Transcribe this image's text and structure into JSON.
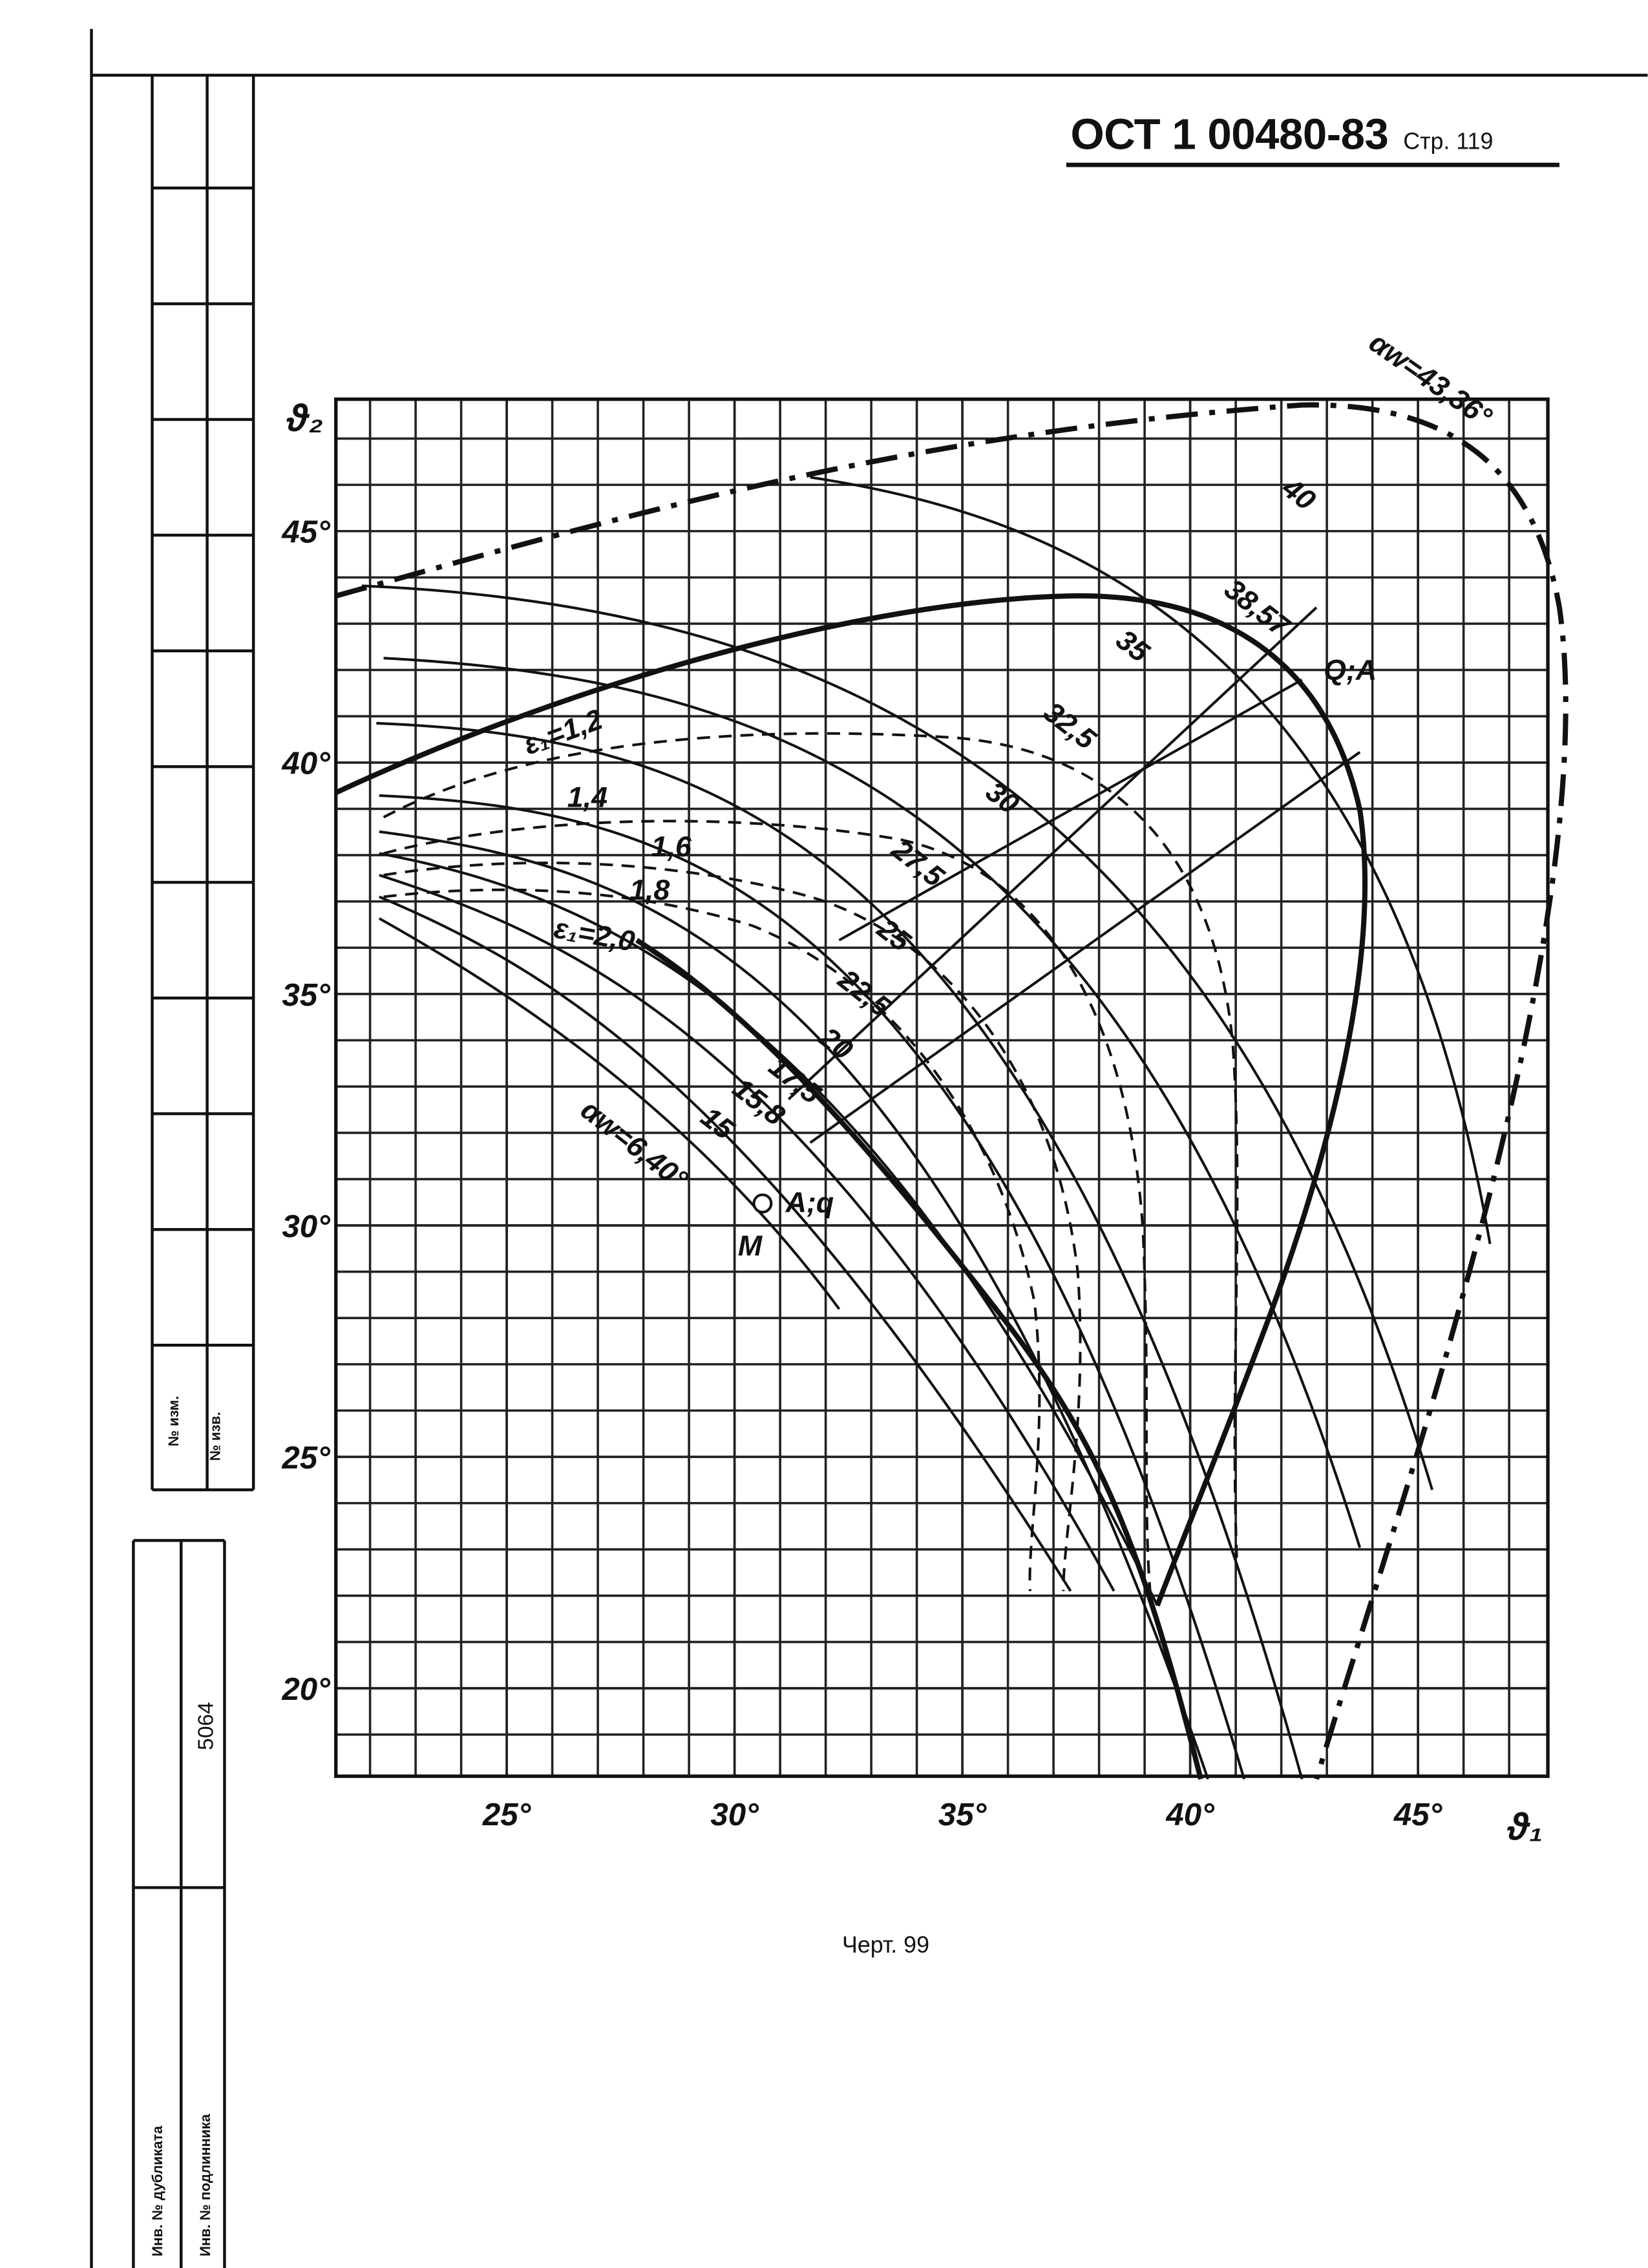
{
  "header": {
    "standard": "ОСТ 1 00480-83",
    "page": "Стр. 119"
  },
  "chart_data": {
    "type": "contour",
    "x_label": "ϑ₁",
    "y_label": "ϑ₂",
    "xlim": [
      21.25,
      47.85
    ],
    "ylim": [
      18.1,
      47.85
    ],
    "xticks": [
      {
        "value": 25,
        "label": "25°"
      },
      {
        "value": 30,
        "label": "30°"
      },
      {
        "value": 35,
        "label": "35°"
      },
      {
        "value": 40,
        "label": "40°"
      },
      {
        "value": 45,
        "label": "45°"
      }
    ],
    "yticks": [
      {
        "value": 20,
        "label": "20°"
      },
      {
        "value": 25,
        "label": "25°"
      },
      {
        "value": 30,
        "label": "30°"
      },
      {
        "value": 35,
        "label": "35°"
      },
      {
        "value": 40,
        "label": "40°"
      },
      {
        "value": 45,
        "label": "45°"
      }
    ],
    "grid": true,
    "curve_labels": [
      "αw=43,36°",
      "40",
      "38,57",
      "35",
      "Q;A",
      "32,5",
      "30",
      "27,5",
      "25",
      "22,5",
      "20",
      "17,5",
      "15,8",
      "15",
      "αw=6,40°",
      "A;q",
      "M",
      "ε₁=1,2",
      "1,4",
      "1,6",
      "1,8",
      "ε₁=2,0"
    ]
  },
  "caption": "Черт. 99",
  "side_stamp": {
    "change_no": "№ изм.",
    "notice_no": "№ изв.",
    "duplicate_inv": "Инв. № дубликата",
    "original_inv": "Инв. № подлинника",
    "original_inv_value": "5064"
  }
}
